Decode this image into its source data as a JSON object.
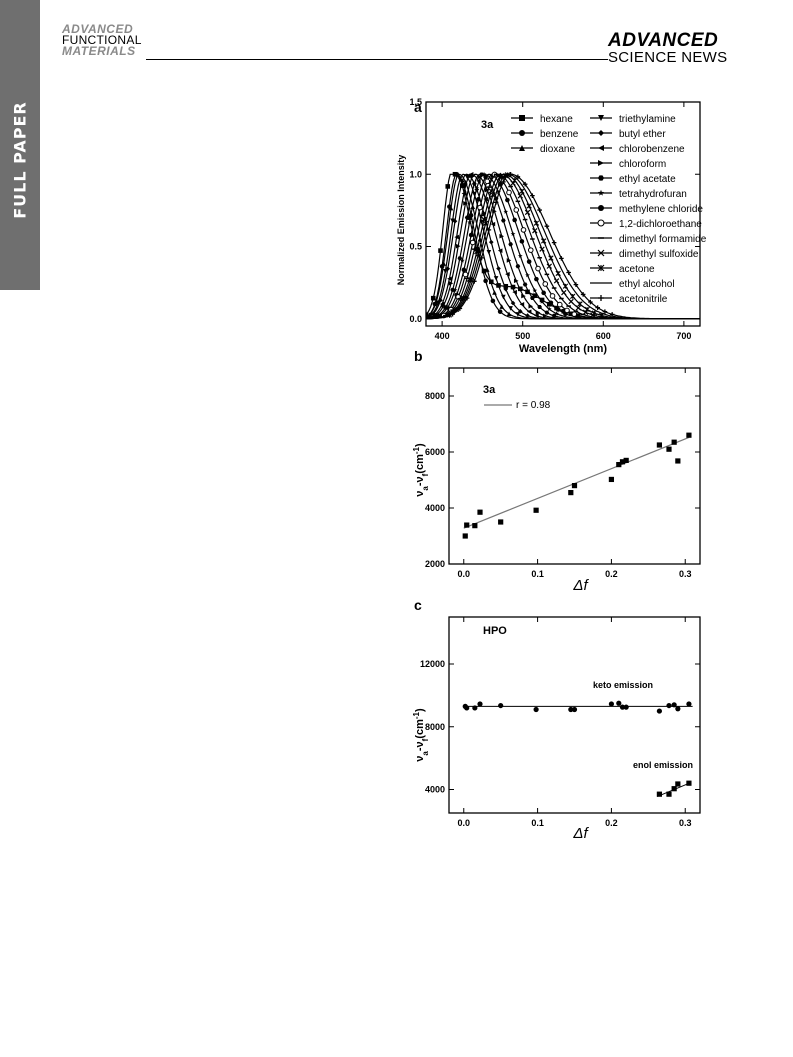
{
  "page": {
    "section_tab": "FULL PAPER",
    "journal_logo": [
      "ADVANCED",
      "FUNCTIONAL",
      "MATERIALS"
    ],
    "publisher_logo": [
      "ADVANCED",
      "SCIENCE NEWS"
    ]
  },
  "chart_data": [
    {
      "panel": "a",
      "type": "line",
      "inner_label": "3a",
      "xlabel": "Wavelength (nm)",
      "ylabel": "Normalized Emission Intensity",
      "xlim": [
        380,
        720
      ],
      "ylim": [
        -0.05,
        1.5
      ],
      "xticks": [
        400,
        500,
        600,
        700
      ],
      "yticks": [
        0.0,
        0.5,
        1.0,
        1.5
      ],
      "ytick_labels": [
        "0.0",
        "0.5",
        "1.0",
        "1.5"
      ],
      "grid": false,
      "legend_position": "top-right",
      "legend_columns": [
        [
          "hexane",
          "benzene",
          "dioxane"
        ],
        [
          "triethylamine",
          "butyl ether",
          "chlorobenzene",
          "chloroform",
          "ethyl acetate",
          "tetrahydrofuran",
          "methylene chloride",
          "1,2-dichloroethane",
          "dimethyl formamide",
          "dimethyl sulfoxide",
          "acetone",
          "ethyl alcohol",
          "acetonitrile"
        ]
      ],
      "series": [
        {
          "name": "hexane",
          "marker": "square",
          "peak": 413,
          "fwhm": 45,
          "shoulder": 0.22
        },
        {
          "name": "benzene",
          "marker": "circle",
          "peak": 418,
          "fwhm": 48,
          "shoulder": 0.0
        },
        {
          "name": "dioxane",
          "marker": "triangle-up",
          "peak": 421,
          "fwhm": 52,
          "shoulder": 0.0
        },
        {
          "name": "triethylamine",
          "marker": "triangle-down",
          "peak": 426,
          "fwhm": 56,
          "shoulder": 0.0
        },
        {
          "name": "butyl ether",
          "marker": "diamond",
          "peak": 430,
          "fwhm": 60,
          "shoulder": 0.0
        },
        {
          "name": "chlorobenzene",
          "marker": "triangle-left",
          "peak": 436,
          "fwhm": 64,
          "shoulder": 0.0
        },
        {
          "name": "chloroform",
          "marker": "triangle-right",
          "peak": 441,
          "fwhm": 68,
          "shoulder": 0.0
        },
        {
          "name": "ethyl acetate",
          "marker": "hexagon",
          "peak": 447,
          "fwhm": 72,
          "shoulder": 0.0
        },
        {
          "name": "tetrahydrofuran",
          "marker": "star",
          "peak": 452,
          "fwhm": 76,
          "shoulder": 0.0
        },
        {
          "name": "methylene chloride",
          "marker": "circle",
          "peak": 458,
          "fwhm": 80,
          "shoulder": 0.0
        },
        {
          "name": "1,2-dichloroethane",
          "marker": "circle-open",
          "peak": 463,
          "fwhm": 84,
          "shoulder": 0.0
        },
        {
          "name": "dimethyl formamide",
          "marker": "dash",
          "peak": 468,
          "fwhm": 88,
          "shoulder": 0.0
        },
        {
          "name": "dimethyl sulfoxide",
          "marker": "cross",
          "peak": 473,
          "fwhm": 92,
          "shoulder": 0.0
        },
        {
          "name": "acetone",
          "marker": "asterisk",
          "peak": 477,
          "fwhm": 96,
          "shoulder": 0.0
        },
        {
          "name": "ethyl alcohol",
          "marker": "none",
          "peak": 481,
          "fwhm": 100,
          "shoulder": 0.0
        },
        {
          "name": "acetonitrile",
          "marker": "plus",
          "peak": 485,
          "fwhm": 104,
          "shoulder": 0.0
        }
      ]
    },
    {
      "panel": "b",
      "type": "scatter",
      "inner_label": "3a",
      "xlabel": "Δf",
      "ylabel": "νa-νf (cm-1)",
      "xlim": [
        -0.02,
        0.32
      ],
      "ylim": [
        2000,
        9000
      ],
      "xticks": [
        0.0,
        0.1,
        0.2,
        0.3
      ],
      "xtick_labels": [
        "0.0",
        "0.1",
        "0.2",
        "0.3"
      ],
      "yticks": [
        2000,
        4000,
        6000,
        8000
      ],
      "grid": false,
      "legend_position": "top-left",
      "fit": {
        "label": "r = 0.98",
        "x": [
          0.0,
          0.305
        ],
        "y": [
          3280,
          6520
        ]
      },
      "points": {
        "x": [
          0.002,
          0.004,
          0.015,
          0.022,
          0.05,
          0.098,
          0.145,
          0.15,
          0.2,
          0.21,
          0.215,
          0.22,
          0.265,
          0.278,
          0.285,
          0.29,
          0.305
        ],
        "y": [
          3000,
          3390,
          3370,
          3850,
          3500,
          3920,
          4550,
          4800,
          5020,
          5550,
          5650,
          5700,
          6250,
          6100,
          6350,
          5680,
          6600
        ]
      }
    },
    {
      "panel": "c",
      "type": "scatter",
      "inner_label": "HPO",
      "xlabel": "Δf",
      "ylabel": "νa-νf (cm-1)",
      "xlim": [
        -0.02,
        0.32
      ],
      "ylim": [
        2500,
        15000
      ],
      "xticks": [
        0.0,
        0.1,
        0.2,
        0.3
      ],
      "xtick_labels": [
        "0.0",
        "0.1",
        "0.2",
        "0.3"
      ],
      "yticks": [
        4000,
        8000,
        12000
      ],
      "grid": false,
      "annotations": [
        "keto emission",
        "enol emission"
      ],
      "series": [
        {
          "name": "keto emission",
          "marker": "circle",
          "x": [
            0.002,
            0.004,
            0.015,
            0.022,
            0.05,
            0.098,
            0.145,
            0.15,
            0.2,
            0.21,
            0.215,
            0.22,
            0.265,
            0.278,
            0.285,
            0.29,
            0.305
          ],
          "y": [
            9300,
            9200,
            9200,
            9450,
            9350,
            9100,
            9100,
            9100,
            9450,
            9500,
            9250,
            9250,
            9000,
            9350,
            9400,
            9150,
            9450
          ],
          "fit": {
            "x": [
              0.0,
              0.31
            ],
            "y": [
              9300,
              9300
            ]
          }
        },
        {
          "name": "enol emission",
          "marker": "square",
          "x": [
            0.265,
            0.278,
            0.285,
            0.29,
            0.305
          ],
          "y": [
            3700,
            3700,
            4050,
            4350,
            4400
          ],
          "fit": {
            "x": [
              0.262,
              0.308
            ],
            "y": [
              3550,
              4450
            ]
          }
        }
      ]
    }
  ]
}
